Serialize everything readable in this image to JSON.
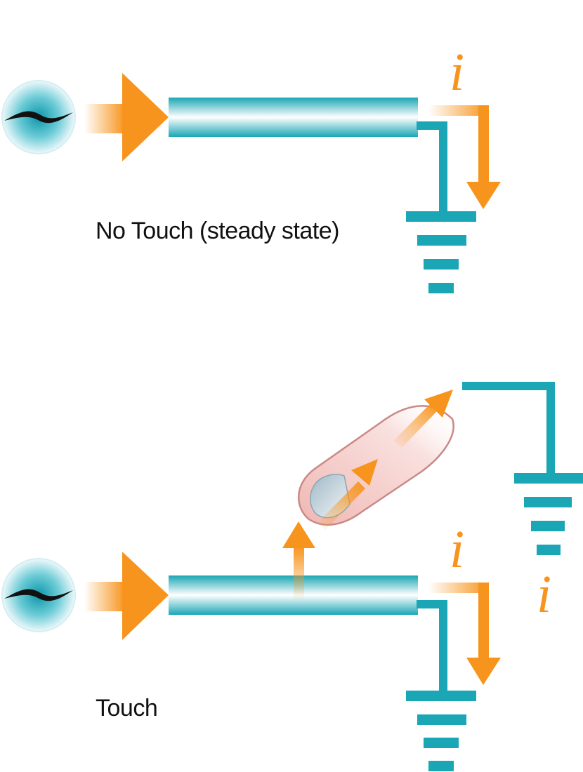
{
  "panels": {
    "no_touch": {
      "label": "No Touch (steady state)",
      "current_symbol": "i"
    },
    "touch": {
      "label": "Touch",
      "current_symbol_line": "i",
      "current_symbol_finger": "i"
    }
  },
  "colors": {
    "wire": "#1ba6b5",
    "arrow": "#f7941d",
    "source_center": "#1aa3b3",
    "finger": "#f2c4c1",
    "nail": "#c9d6dc",
    "text": "#111111"
  },
  "icons": {
    "source": "ac-source-icon",
    "ground": "ground-icon",
    "finger": "finger-icon"
  }
}
